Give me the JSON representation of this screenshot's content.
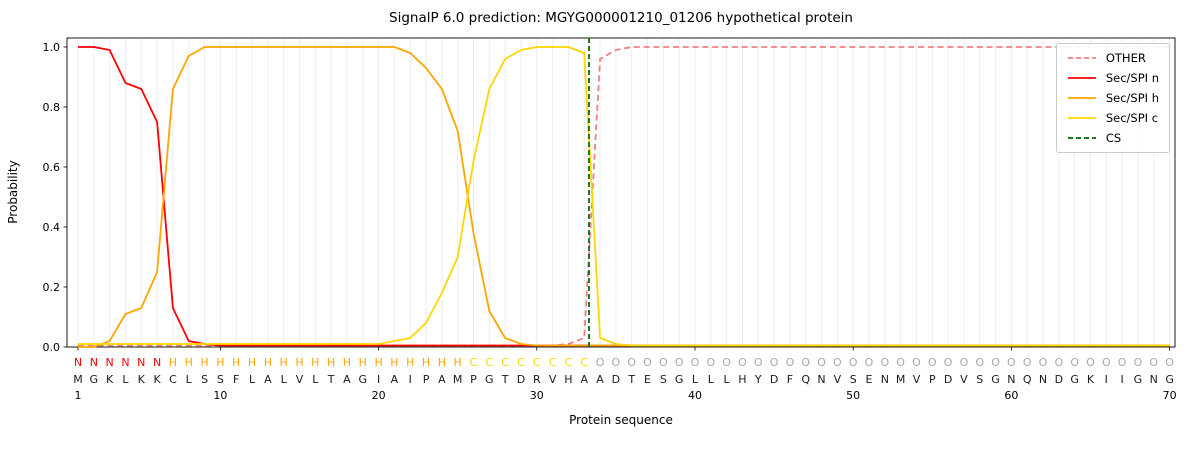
{
  "title": "SignalP 6.0 prediction: MGYG000001210_01206 hypothetical protein",
  "axes": {
    "ylabel": "Probability",
    "xlabel": "Protein sequence",
    "yticks": [
      "0.0",
      "0.2",
      "0.4",
      "0.6",
      "0.8",
      "1.0"
    ],
    "xticks": [
      1,
      10,
      20,
      30,
      40,
      50,
      60,
      70
    ]
  },
  "chart_data": {
    "type": "line",
    "x_start": 1,
    "x_end": 70,
    "xlim": [
      0.3,
      70.5
    ],
    "ylim": [
      0.0,
      1.0
    ],
    "grid": "vertical-per-residue",
    "legend_position": "upper right",
    "series": [
      {
        "name": "OTHER",
        "color": "#f08080",
        "dash": true,
        "values": [
          0.005,
          0.005,
          0.005,
          0.005,
          0.005,
          0.005,
          0.005,
          0.005,
          0.005,
          0.005,
          0.005,
          0.005,
          0.005,
          0.005,
          0.005,
          0.005,
          0.005,
          0.005,
          0.005,
          0.005,
          0.005,
          0.005,
          0.005,
          0.005,
          0.005,
          0.005,
          0.005,
          0.005,
          0.005,
          0.005,
          0.005,
          0.01,
          0.03,
          0.96,
          0.99,
          1.0,
          1.0,
          1.0,
          1.0,
          1.0,
          1.0,
          1.0,
          1.0,
          1.0,
          1.0,
          1.0,
          1.0,
          1.0,
          1.0,
          1.0,
          1.0,
          1.0,
          1.0,
          1.0,
          1.0,
          1.0,
          1.0,
          1.0,
          1.0,
          1.0,
          1.0,
          1.0,
          1.0,
          1.0,
          1.0,
          1.0,
          1.0,
          1.0,
          1.0,
          1.0
        ]
      },
      {
        "name": "Sec/SPI n",
        "color": "#ff0000",
        "dash": false,
        "values": [
          1.0,
          1.0,
          0.99,
          0.88,
          0.86,
          0.75,
          0.13,
          0.02,
          0.01,
          0.005,
          0.005,
          0.005,
          0.005,
          0.005,
          0.005,
          0.005,
          0.005,
          0.005,
          0.005,
          0.005,
          0.005,
          0.005,
          0.005,
          0.005,
          0.005,
          0.005,
          0.005,
          0.005,
          0.005,
          0.005,
          0.005,
          0.005,
          0.005,
          0.005,
          0.005,
          0.005,
          0.005,
          0.005,
          0.005,
          0.005,
          0.005,
          0.005,
          0.005,
          0.005,
          0.005,
          0.005,
          0.005,
          0.005,
          0.005,
          0.005,
          0.005,
          0.005,
          0.005,
          0.005,
          0.005,
          0.005,
          0.005,
          0.005,
          0.005,
          0.005,
          0.005,
          0.005,
          0.005,
          0.005,
          0.005,
          0.005,
          0.005,
          0.005,
          0.005,
          0.005
        ]
      },
      {
        "name": "Sec/SPI h",
        "color": "#ffa500",
        "dash": false,
        "values": [
          0.0,
          0.0,
          0.02,
          0.11,
          0.13,
          0.25,
          0.86,
          0.97,
          1.0,
          1.0,
          1.0,
          1.0,
          1.0,
          1.0,
          1.0,
          1.0,
          1.0,
          1.0,
          1.0,
          1.0,
          1.0,
          0.98,
          0.93,
          0.86,
          0.72,
          0.38,
          0.12,
          0.03,
          0.01,
          0.005,
          0.005,
          0.005,
          0.005,
          0.005,
          0.005,
          0.005,
          0.005,
          0.005,
          0.005,
          0.005,
          0.005,
          0.005,
          0.005,
          0.005,
          0.005,
          0.005,
          0.005,
          0.005,
          0.005,
          0.005,
          0.005,
          0.005,
          0.005,
          0.005,
          0.005,
          0.005,
          0.005,
          0.005,
          0.005,
          0.005,
          0.005,
          0.005,
          0.005,
          0.005,
          0.005,
          0.005,
          0.005,
          0.005,
          0.005,
          0.005
        ]
      },
      {
        "name": "Sec/SPI c",
        "color": "#ffd700",
        "dash": false,
        "values": [
          0.01,
          0.01,
          0.01,
          0.01,
          0.01,
          0.01,
          0.01,
          0.01,
          0.01,
          0.01,
          0.01,
          0.01,
          0.01,
          0.01,
          0.01,
          0.01,
          0.01,
          0.01,
          0.01,
          0.01,
          0.02,
          0.03,
          0.08,
          0.18,
          0.3,
          0.62,
          0.86,
          0.96,
          0.99,
          1.0,
          1.0,
          1.0,
          0.98,
          0.03,
          0.01,
          0.005,
          0.005,
          0.005,
          0.005,
          0.005,
          0.005,
          0.005,
          0.005,
          0.005,
          0.005,
          0.005,
          0.005,
          0.005,
          0.005,
          0.005,
          0.005,
          0.005,
          0.005,
          0.005,
          0.005,
          0.005,
          0.005,
          0.005,
          0.005,
          0.005,
          0.005,
          0.005,
          0.005,
          0.005,
          0.005,
          0.005,
          0.005,
          0.005,
          0.005,
          0.005
        ]
      }
    ],
    "cs": {
      "label": "CS",
      "color": "#006400",
      "x": 33.3
    },
    "sequence": "MGKLKKCLSSFLALVLTAGIAIPAMPGTDRVHAADTESGLLLHYDFQNVSENMVPDVSGNQNDGKIIGNG",
    "regions": "NNNNNNHHHHHHHHHHHHHHHHHHHCCCCCCCCOOOOOOOOOOOOOOOOOOOOOOOOOOOOOOOOOOOOO",
    "region_colors": {
      "N": "#ff0000",
      "H": "#ffa500",
      "C": "#ffd700",
      "O": "#a8a8a8"
    },
    "sequence_color": "#1a1a1a"
  }
}
